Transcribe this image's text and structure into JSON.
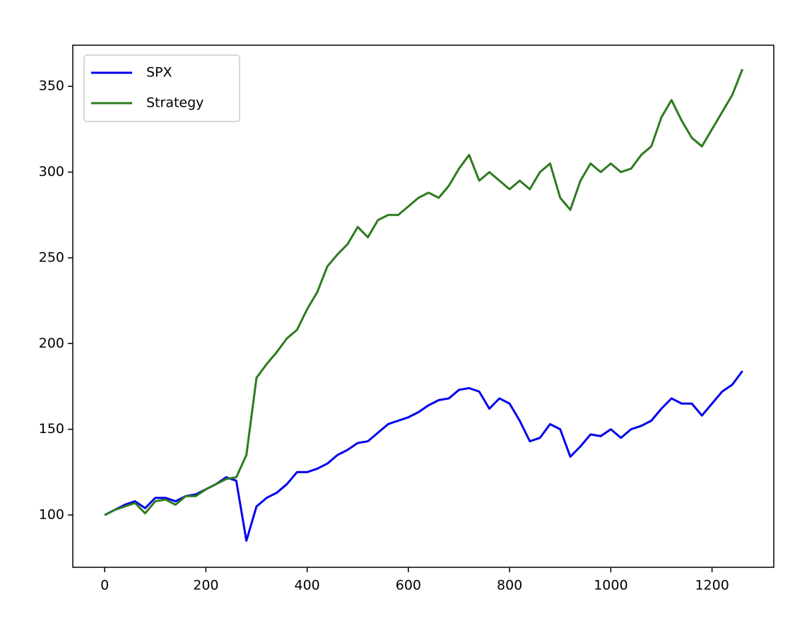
{
  "chart_data": {
    "type": "line",
    "x": [
      0,
      20,
      40,
      60,
      80,
      100,
      120,
      140,
      160,
      180,
      200,
      220,
      240,
      260,
      280,
      300,
      320,
      340,
      360,
      380,
      400,
      420,
      440,
      460,
      480,
      500,
      520,
      540,
      560,
      580,
      600,
      620,
      640,
      660,
      680,
      700,
      720,
      740,
      760,
      780,
      800,
      820,
      840,
      860,
      880,
      900,
      920,
      940,
      960,
      980,
      1000,
      1020,
      1040,
      1060,
      1080,
      1100,
      1120,
      1140,
      1160,
      1180,
      1200,
      1220,
      1240,
      1260
    ],
    "series": [
      {
        "name": "SPX",
        "color": "#0000ee",
        "values": [
          100,
          103,
          106,
          108,
          104,
          110,
          110,
          108,
          111,
          112,
          115,
          118,
          122,
          120,
          85,
          105,
          110,
          113,
          118,
          125,
          125,
          127,
          130,
          135,
          138,
          142,
          143,
          148,
          153,
          155,
          157,
          160,
          164,
          167,
          168,
          173,
          174,
          172,
          162,
          168,
          165,
          155,
          143,
          145,
          153,
          150,
          134,
          140,
          147,
          146,
          150,
          145,
          150,
          152,
          155,
          162,
          168,
          165,
          165,
          158,
          165,
          172,
          176,
          184
        ]
      },
      {
        "name": "Strategy",
        "color": "#2e7a1f",
        "values": [
          100,
          103,
          105,
          107,
          101,
          108,
          109,
          106,
          111,
          111,
          115,
          118,
          121,
          122,
          135,
          180,
          188,
          195,
          203,
          208,
          220,
          230,
          245,
          252,
          258,
          268,
          262,
          272,
          275,
          275,
          280,
          285,
          288,
          285,
          292,
          302,
          310,
          295,
          300,
          295,
          290,
          295,
          290,
          300,
          305,
          285,
          278,
          295,
          305,
          300,
          305,
          300,
          302,
          310,
          315,
          332,
          342,
          330,
          320,
          315,
          325,
          335,
          345,
          360
        ]
      }
    ],
    "xlim": [
      -63,
      1322
    ],
    "ylim": [
      69.5,
      374
    ],
    "xticks": [
      0,
      200,
      400,
      600,
      800,
      1000,
      1200
    ],
    "yticks": [
      100,
      150,
      200,
      250,
      300,
      350
    ],
    "legend": "upper left"
  }
}
